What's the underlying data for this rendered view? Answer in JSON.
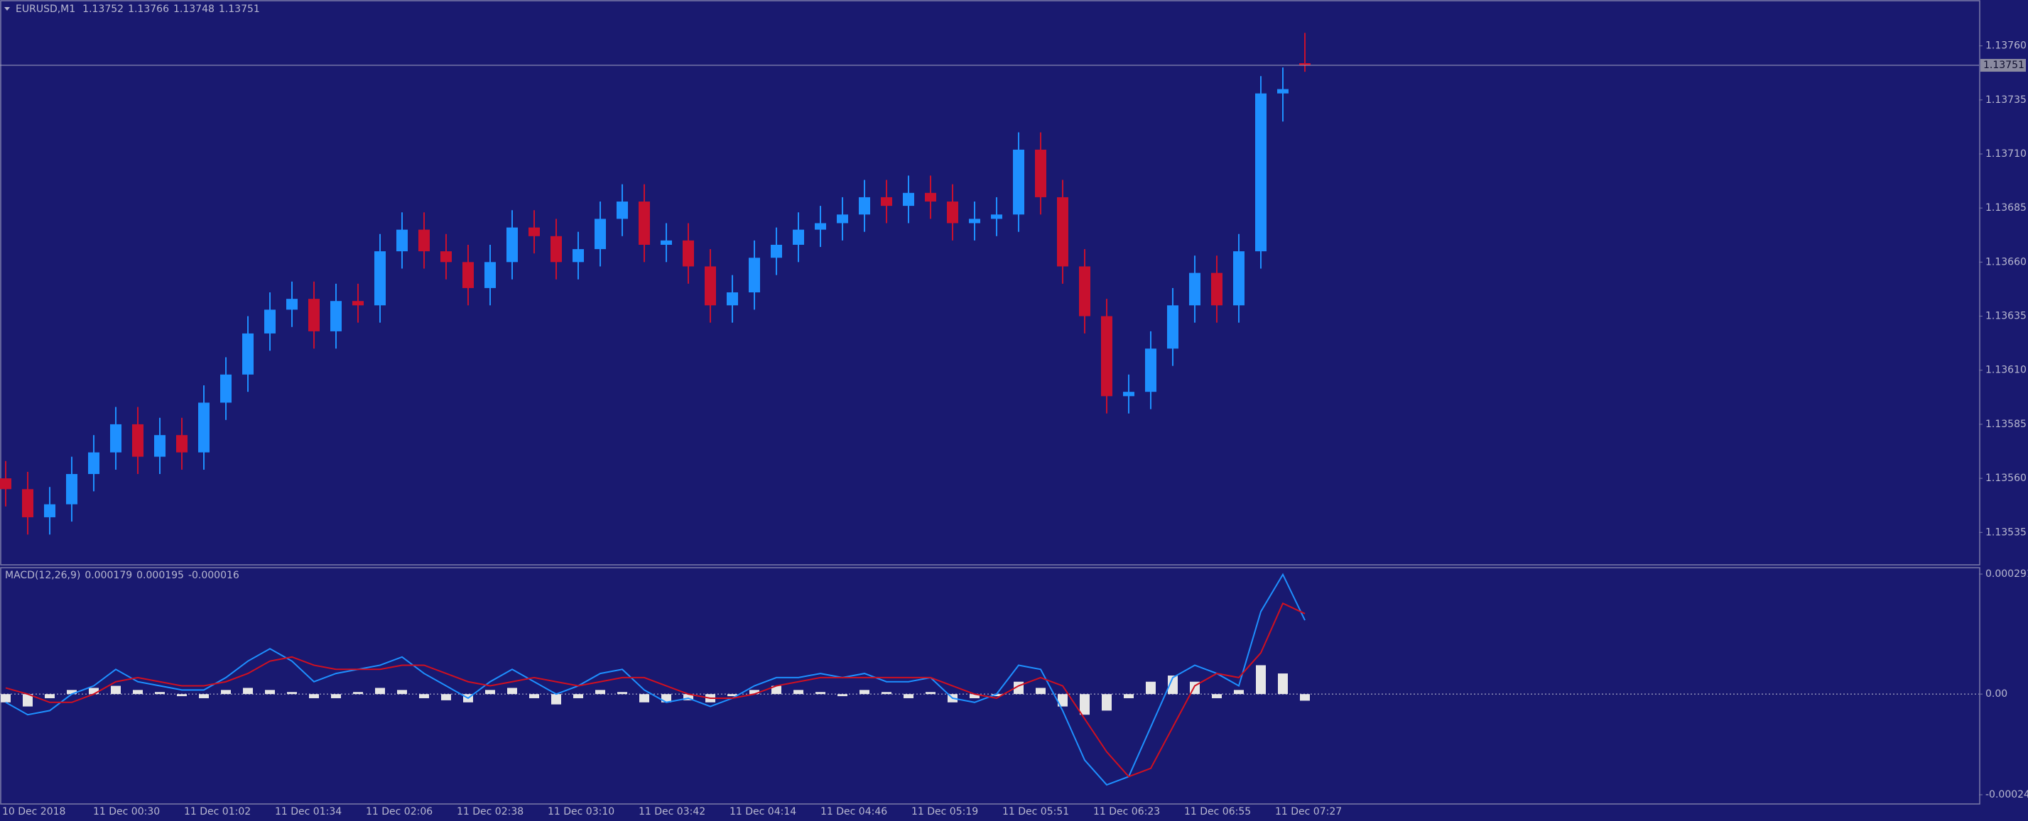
{
  "chart_data": [
    {
      "type": "candlestick",
      "title": "EURUSD,M1",
      "ohlc_values": [
        1.13752,
        1.13766,
        1.13748,
        1.13751
      ],
      "current_price": 1.13751,
      "bull_color": "#1e90ff",
      "bear_color": "#c8102e",
      "ylim": [
        1.1352,
        1.13773
      ],
      "yticks": [
        {
          "value": 1.1376,
          "label": "1.13760"
        },
        1.13735,
        {
          "value": 1.1371,
          "label": "1.13710"
        },
        1.13685,
        {
          "value": 1.1366,
          "label": "1.13660"
        },
        1.13635,
        {
          "value": 1.1361,
          "label": "1.13610"
        },
        1.13585,
        {
          "value": 1.1356,
          "label": "1.13560"
        },
        1.13535
      ],
      "x_labels": [
        "10 Dec 2018",
        "11 Dec 00:30",
        "11 Dec 01:02",
        "11 Dec 01:34",
        "11 Dec 02:06",
        "11 Dec 02:38",
        "11 Dec 03:10",
        "11 Dec 03:42",
        "11 Dec 04:14",
        "11 Dec 04:46",
        "11 Dec 05:19",
        "11 Dec 05:51",
        "11 Dec 06:23",
        "11 Dec 06:55",
        "11 Dec 07:27"
      ],
      "open": [
        1.1356,
        1.13555,
        1.13542,
        1.13548,
        1.13562,
        1.13572,
        1.13585,
        1.1357,
        1.1358,
        1.13572,
        1.13595,
        1.13608,
        1.13627,
        1.13638,
        1.13643,
        1.13628,
        1.13642,
        1.1364,
        1.13665,
        1.13675,
        1.13665,
        1.1366,
        1.13648,
        1.1366,
        1.13676,
        1.13672,
        1.1366,
        1.13666,
        1.1368,
        1.13688,
        1.13668,
        1.1367,
        1.13658,
        1.1364,
        1.13646,
        1.13662,
        1.13668,
        1.13675,
        1.13678,
        1.13682,
        1.1369,
        1.13686,
        1.13692,
        1.13688,
        1.13678,
        1.1368,
        1.13682,
        1.13712,
        1.1369,
        1.13658,
        1.13635,
        1.13598,
        1.136,
        1.1362,
        1.1364,
        1.13655,
        1.1364,
        1.13665,
        1.13738,
        1.13752
      ],
      "high": [
        1.13568,
        1.13563,
        1.13556,
        1.1357,
        1.1358,
        1.13593,
        1.13593,
        1.13588,
        1.13588,
        1.13603,
        1.13616,
        1.13635,
        1.13646,
        1.13651,
        1.13651,
        1.1365,
        1.1365,
        1.13673,
        1.13683,
        1.13683,
        1.13673,
        1.13668,
        1.13668,
        1.13684,
        1.13684,
        1.1368,
        1.13674,
        1.13688,
        1.13696,
        1.13696,
        1.13678,
        1.13678,
        1.13666,
        1.13654,
        1.1367,
        1.13676,
        1.13683,
        1.13686,
        1.1369,
        1.13698,
        1.13698,
        1.137,
        1.137,
        1.13696,
        1.13688,
        1.1369,
        1.1372,
        1.1372,
        1.13698,
        1.13666,
        1.13643,
        1.13608,
        1.13628,
        1.13648,
        1.13663,
        1.13663,
        1.13673,
        1.13746,
        1.1375,
        1.13766
      ],
      "low": [
        1.13547,
        1.13534,
        1.13534,
        1.1354,
        1.13554,
        1.13564,
        1.13562,
        1.13562,
        1.13564,
        1.13564,
        1.13587,
        1.136,
        1.13619,
        1.1363,
        1.1362,
        1.1362,
        1.13632,
        1.13632,
        1.13657,
        1.13657,
        1.13652,
        1.1364,
        1.1364,
        1.13652,
        1.13664,
        1.13652,
        1.13652,
        1.13658,
        1.13672,
        1.1366,
        1.1366,
        1.1365,
        1.13632,
        1.13632,
        1.13638,
        1.13654,
        1.1366,
        1.13667,
        1.1367,
        1.13674,
        1.13678,
        1.13678,
        1.1368,
        1.1367,
        1.1367,
        1.13672,
        1.13674,
        1.13682,
        1.1365,
        1.13627,
        1.1359,
        1.1359,
        1.13592,
        1.13612,
        1.13632,
        1.13632,
        1.13632,
        1.13657,
        1.13725,
        1.13748
      ],
      "close": [
        1.13555,
        1.13542,
        1.13548,
        1.13562,
        1.13572,
        1.13585,
        1.1357,
        1.1358,
        1.13572,
        1.13595,
        1.13608,
        1.13627,
        1.13638,
        1.13643,
        1.13628,
        1.13642,
        1.1364,
        1.13665,
        1.13675,
        1.13665,
        1.1366,
        1.13648,
        1.1366,
        1.13676,
        1.13672,
        1.1366,
        1.13666,
        1.1368,
        1.13688,
        1.13668,
        1.1367,
        1.13658,
        1.1364,
        1.13646,
        1.13662,
        1.13668,
        1.13675,
        1.13678,
        1.13682,
        1.1369,
        1.13686,
        1.13692,
        1.13688,
        1.13678,
        1.1368,
        1.13682,
        1.13712,
        1.1369,
        1.13658,
        1.13635,
        1.13598,
        1.136,
        1.1362,
        1.1364,
        1.13655,
        1.1364,
        1.13665,
        1.13738,
        1.1374,
        1.13751
      ]
    },
    {
      "type": "macd",
      "title": "MACD(12,26,9)",
      "title_values": [
        0.000179,
        0.000195,
        -1.6e-05
      ],
      "ylim": [
        -0.000244,
        0.000291
      ],
      "yticks": [
        0.000291,
        {
          "value": 0,
          "label": "0.00"
        },
        -0.000244
      ],
      "series": [
        {
          "color": "#e6e6e6",
          "values": [
            -2e-05,
            -3e-05,
            -1e-05,
            1e-05,
            1.5e-05,
            2e-05,
            1e-05,
            5e-06,
            -5e-06,
            -1e-05,
            1e-05,
            1.5e-05,
            1e-05,
            5e-06,
            -1e-05,
            -1e-05,
            5e-06,
            1.5e-05,
            1e-05,
            -1e-05,
            -1.5e-05,
            -2e-05,
            1e-05,
            1.5e-05,
            -1e-05,
            -2.5e-05,
            -1e-05,
            1e-05,
            5e-06,
            -2e-05,
            -2e-05,
            -1.5e-05,
            -2e-05,
            -5e-06,
            1e-05,
            2e-05,
            1e-05,
            5e-06,
            -5e-06,
            1e-05,
            5e-06,
            -1e-05,
            5e-06,
            -2e-05,
            -1e-05,
            -5e-06,
            3e-05,
            1.5e-05,
            -3e-05,
            -5e-05,
            -4e-05,
            -1e-05,
            3e-05,
            4.5e-05,
            3e-05,
            -1e-05,
            1e-05,
            7e-05,
            5e-05,
            -1.6e-05
          ]
        },
        {
          "color": "#1e90ff",
          "values": [
            -2e-05,
            -5e-05,
            -4e-05,
            0,
            2e-05,
            6e-05,
            3e-05,
            2e-05,
            1e-05,
            1e-05,
            4e-05,
            8e-05,
            0.00011,
            8e-05,
            3e-05,
            5e-05,
            6e-05,
            7e-05,
            9e-05,
            5e-05,
            2e-05,
            -1e-05,
            3e-05,
            6e-05,
            3e-05,
            0,
            2e-05,
            5e-05,
            6e-05,
            1e-05,
            -2e-05,
            -1e-05,
            -3e-05,
            -1e-05,
            2e-05,
            4e-05,
            4e-05,
            5e-05,
            4e-05,
            5e-05,
            3e-05,
            3e-05,
            4e-05,
            -1e-05,
            -2e-05,
            0,
            7e-05,
            6e-05,
            -4e-05,
            -0.00016,
            -0.00022,
            -0.0002,
            -8e-05,
            4e-05,
            7e-05,
            5e-05,
            2e-05,
            0.0002,
            0.00029,
            0.000179
          ]
        },
        {
          "color": "#d01020",
          "values": [
            1.5e-05,
            0,
            -2e-05,
            -2e-05,
            0,
            3e-05,
            4e-05,
            3e-05,
            2e-05,
            2e-05,
            3e-05,
            5e-05,
            8e-05,
            9e-05,
            7e-05,
            6e-05,
            6e-05,
            6e-05,
            7e-05,
            7e-05,
            5e-05,
            3e-05,
            2e-05,
            3e-05,
            4e-05,
            3e-05,
            2e-05,
            3e-05,
            4e-05,
            4e-05,
            2e-05,
            0,
            -1e-05,
            -1e-05,
            0,
            2e-05,
            3e-05,
            4e-05,
            4e-05,
            4e-05,
            4e-05,
            4e-05,
            4e-05,
            2e-05,
            0,
            -1e-05,
            2e-05,
            4e-05,
            2e-05,
            -6e-05,
            -0.00014,
            -0.0002,
            -0.00018,
            -8e-05,
            2e-05,
            5e-05,
            4e-05,
            0.0001,
            0.00022,
            0.000195
          ]
        }
      ]
    }
  ]
}
